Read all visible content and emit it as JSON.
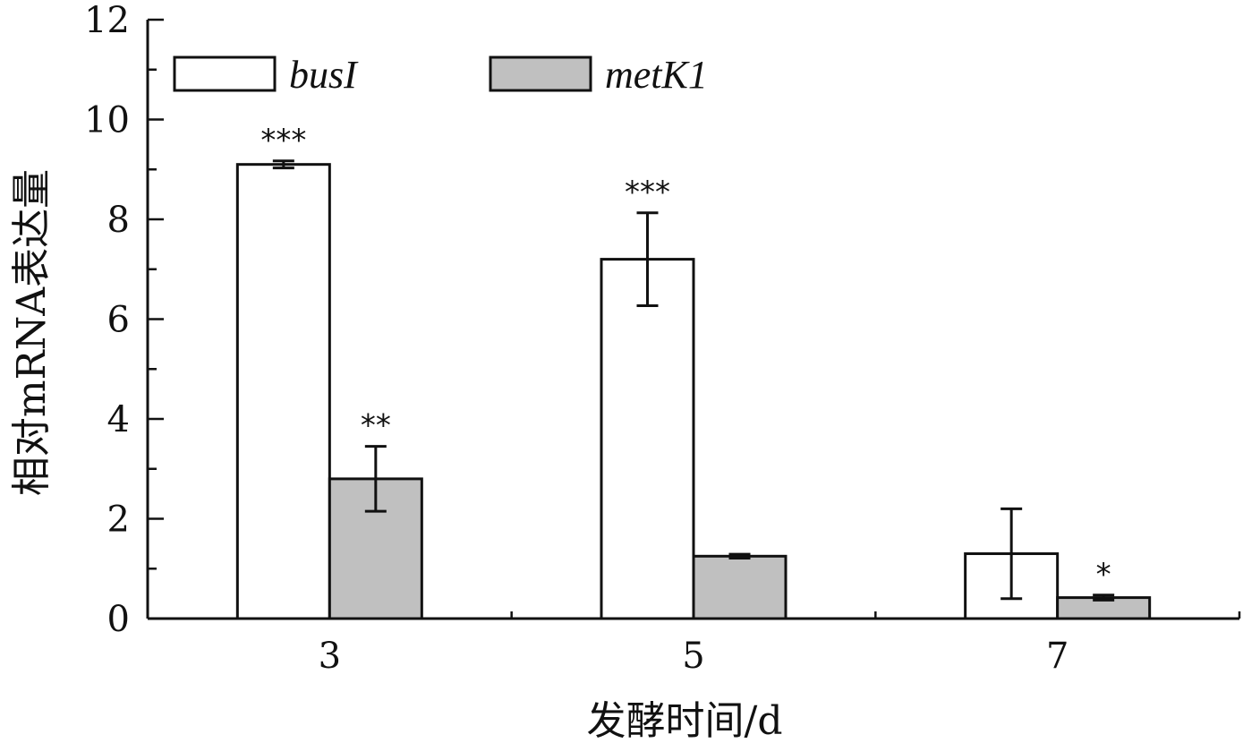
{
  "chart_data": {
    "type": "bar",
    "categories": [
      "3",
      "5",
      "7"
    ],
    "xlabel": "发酵时间/d",
    "ylabel": "相对mRNA表达量",
    "ylim": [
      0,
      12
    ],
    "yticks": [
      "0",
      "2",
      "4",
      "6",
      "8",
      "10",
      "12"
    ],
    "grid": false,
    "legend_position": "top-left",
    "series": [
      {
        "name": "busI",
        "color": "#ffffff",
        "values": [
          9.1,
          7.2,
          1.3
        ],
        "errors": [
          0.07,
          0.93,
          0.9
        ],
        "significance": [
          "***",
          "***",
          ""
        ]
      },
      {
        "name": "metK1",
        "color": "#c0c0c0",
        "values": [
          2.8,
          1.25,
          0.42
        ],
        "errors": [
          0.65,
          0.04,
          0.05
        ],
        "significance": [
          "**",
          "",
          "*"
        ]
      }
    ]
  }
}
